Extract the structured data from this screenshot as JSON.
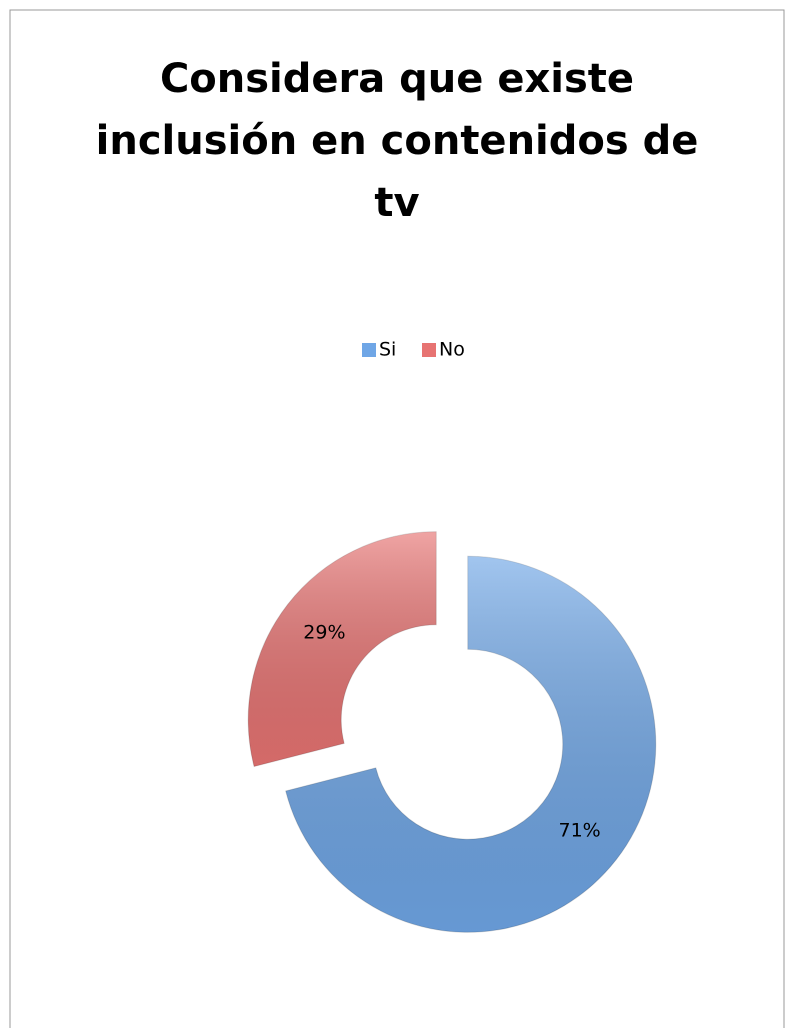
{
  "chart_data": {
    "type": "donut",
    "title": "Considera que existe inclusión en contenidos de tv",
    "categories": [
      "Si",
      "No"
    ],
    "values": [
      71,
      29
    ],
    "value_labels": [
      "71%",
      "29%"
    ],
    "colors": [
      "#6fa6e6",
      "#e77372"
    ],
    "legend": "top"
  }
}
